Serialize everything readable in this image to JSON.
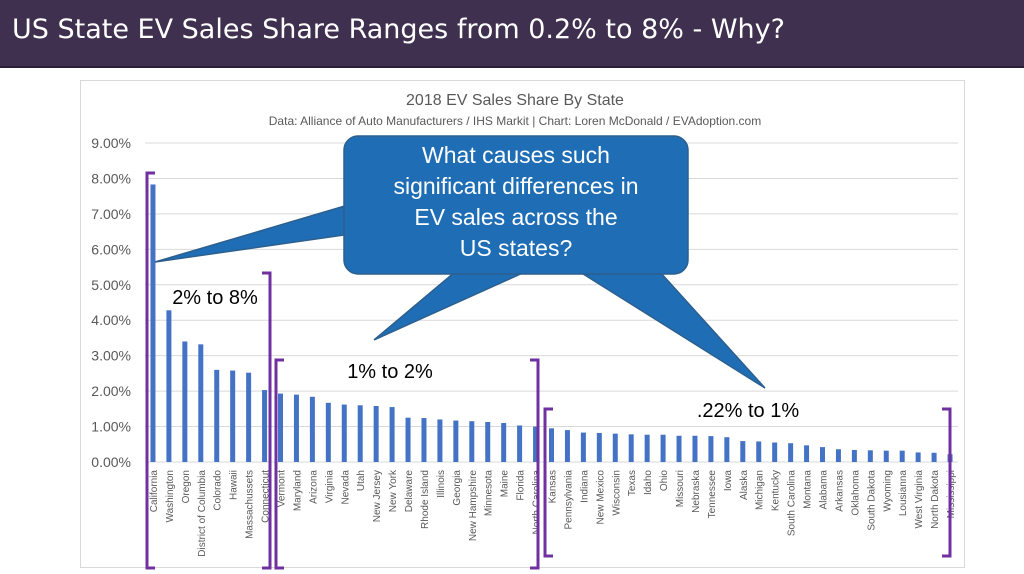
{
  "header": {
    "title": "US State EV Sales Share Ranges from 0.2% to 8% - Why?"
  },
  "chart_data": {
    "type": "bar",
    "title": "2018 EV Sales Share By State",
    "subtitle": "Data: Alliance of Auto Manufacturers / IHS Markit | Chart: Loren McDonald / EVAdoption.com",
    "xlabel": "",
    "ylabel": "",
    "ylim": [
      0,
      0.09
    ],
    "yticks": [
      "0.00%",
      "1.00%",
      "2.00%",
      "3.00%",
      "4.00%",
      "5.00%",
      "6.00%",
      "7.00%",
      "8.00%",
      "9.00%"
    ],
    "grid": true,
    "categories": [
      "California",
      "Washington",
      "Oregon",
      "District of Columbia",
      "Colorado",
      "Hawaii",
      "Massachussets",
      "Connecticut",
      "Vermont",
      "Maryland",
      "Arizona",
      "Virginia",
      "Nevada",
      "Utah",
      "New Jersey",
      "New York",
      "Delaware",
      "Rhode Island",
      "Illinois",
      "Georgia",
      "New Hampshire",
      "Minnesota",
      "Maine",
      "Florida",
      "North Carolina",
      "Kansas",
      "Pennsylvania",
      "Indiana",
      "New Mexico",
      "Wisconsin",
      "Texas",
      "Idaho",
      "Ohio",
      "Missouri",
      "Nebraska",
      "Tennessee",
      "Iowa",
      "Alaska",
      "Michigan",
      "Kentucky",
      "South Carolina",
      "Montana",
      "Alabama",
      "Arkansas",
      "Oklahoma",
      "South Dakota",
      "Wyoming",
      "Lousianna",
      "West Virginia",
      "North Dakota",
      "Mississippi"
    ],
    "values": [
      0.0783,
      0.0428,
      0.034,
      0.0332,
      0.026,
      0.0258,
      0.0252,
      0.0203,
      0.0193,
      0.019,
      0.0184,
      0.0167,
      0.0162,
      0.016,
      0.0158,
      0.0155,
      0.0125,
      0.0124,
      0.012,
      0.0117,
      0.0115,
      0.0113,
      0.011,
      0.0103,
      0.01,
      0.0095,
      0.009,
      0.0083,
      0.0082,
      0.008,
      0.0078,
      0.0077,
      0.0077,
      0.0074,
      0.0074,
      0.0073,
      0.007,
      0.0059,
      0.0058,
      0.0055,
      0.0053,
      0.0047,
      0.0042,
      0.0036,
      0.0034,
      0.0033,
      0.0032,
      0.0032,
      0.0027,
      0.0026,
      0.0022
    ],
    "color": "#4472c4",
    "annotations": {
      "callout": "What causes such significant differences in EV sales across the US states?",
      "callout_color": "#1f6eb5",
      "range_color": "#7030a0",
      "ranges": [
        {
          "label": "2% to 8%",
          "from": 0,
          "to": 7
        },
        {
          "label": "1% to 2%",
          "from": 8,
          "to": 24
        },
        {
          "label": ".22% to 1%",
          "from": 25,
          "to": 50
        }
      ]
    }
  }
}
